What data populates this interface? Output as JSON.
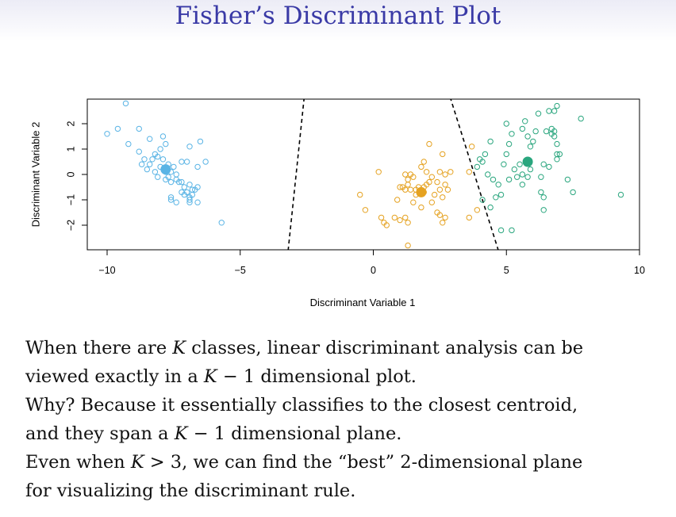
{
  "slide": {
    "title": "Fisher’s Discriminant Plot",
    "title_color": "#3a3aa6"
  },
  "text": {
    "line1": {
      "a": "When there are ",
      "k1": "K",
      "b": " classes, linear discriminant analysis can be"
    },
    "line2": {
      "a": "viewed exactly in a ",
      "k1": "K",
      "b": " − 1 dimensional plot."
    },
    "line3": {
      "a": "Why? Because it essentially classifies to the closest centroid,"
    },
    "line4": {
      "a": "and they span a ",
      "k1": "K",
      "b": " − 1 dimensional plane."
    },
    "line5": {
      "a": "Even when ",
      "k1": "K",
      "b": " > 3, we can find the “best” 2-dimensional plane"
    },
    "line6": {
      "a": "for visualizing the discriminant rule."
    }
  },
  "chart_data": {
    "type": "scatter",
    "xlabel": "Discriminant Variable 1",
    "ylabel": "Discriminant Variable 2",
    "xlim": [
      -10.5,
      10.5
    ],
    "ylim": [
      -3.0,
      3.0
    ],
    "xticks": [
      -10,
      -5,
      0,
      5,
      10
    ],
    "yticks": [
      -2,
      -1,
      0,
      1,
      2
    ],
    "grid": false,
    "series": [
      {
        "color": "#5ab4e5",
        "centroid": [
          -7.8,
          0.2
        ],
        "points": [
          [
            -9.3,
            2.8
          ],
          [
            -10.0,
            1.6
          ],
          [
            -9.6,
            1.8
          ],
          [
            -8.8,
            1.8
          ],
          [
            -9.2,
            1.2
          ],
          [
            -8.4,
            1.4
          ],
          [
            -7.9,
            1.5
          ],
          [
            -7.8,
            1.2
          ],
          [
            -8.0,
            1.0
          ],
          [
            -8.2,
            0.8
          ],
          [
            -8.8,
            0.9
          ],
          [
            -8.6,
            0.6
          ],
          [
            -8.3,
            0.6
          ],
          [
            -8.1,
            0.7
          ],
          [
            -7.9,
            0.6
          ],
          [
            -7.7,
            0.4
          ],
          [
            -7.5,
            0.3
          ],
          [
            -8.4,
            0.4
          ],
          [
            -8.7,
            0.4
          ],
          [
            -8.5,
            0.2
          ],
          [
            -8.0,
            0.3
          ],
          [
            -8.2,
            0.1
          ],
          [
            -7.8,
            0.1
          ],
          [
            -7.6,
            0.1
          ],
          [
            -7.4,
            0.0
          ],
          [
            -7.7,
            -0.1
          ],
          [
            -7.4,
            -0.2
          ],
          [
            -7.2,
            -0.3
          ],
          [
            -7.1,
            -0.5
          ],
          [
            -7.8,
            -0.2
          ],
          [
            -8.1,
            -0.1
          ],
          [
            -7.6,
            -0.3
          ],
          [
            -7.0,
            -0.7
          ],
          [
            -6.8,
            -0.6
          ],
          [
            -7.2,
            -0.7
          ],
          [
            -6.8,
            -0.8
          ],
          [
            -7.6,
            -0.9
          ],
          [
            -7.4,
            -1.1
          ],
          [
            -7.1,
            -0.8
          ],
          [
            -6.9,
            -0.9
          ],
          [
            -6.7,
            -0.6
          ],
          [
            -6.9,
            -1.0
          ],
          [
            -6.6,
            -1.1
          ],
          [
            -6.9,
            -0.4
          ],
          [
            -6.6,
            -0.5
          ],
          [
            -6.9,
            -1.1
          ],
          [
            -7.2,
            0.5
          ],
          [
            -6.9,
            1.1
          ],
          [
            -6.5,
            1.3
          ],
          [
            -6.3,
            0.5
          ],
          [
            -7.0,
            0.5
          ],
          [
            -6.6,
            0.3
          ],
          [
            -5.7,
            -1.9
          ],
          [
            -7.6,
            -1.0
          ],
          [
            -7.3,
            -0.3
          ]
        ]
      },
      {
        "color": "#e5a221",
        "centroid": [
          1.8,
          -0.7
        ],
        "points": [
          [
            -0.5,
            -0.8
          ],
          [
            -0.3,
            -1.4
          ],
          [
            0.2,
            0.1
          ],
          [
            0.3,
            -1.7
          ],
          [
            0.5,
            -2.0
          ],
          [
            0.4,
            -1.9
          ],
          [
            0.8,
            -1.7
          ],
          [
            1.0,
            -1.8
          ],
          [
            1.2,
            -1.7
          ],
          [
            1.3,
            -1.9
          ],
          [
            1.3,
            -2.8
          ],
          [
            0.9,
            -1.0
          ],
          [
            1.0,
            -0.5
          ],
          [
            1.2,
            -0.6
          ],
          [
            1.3,
            -0.4
          ],
          [
            1.1,
            -0.5
          ],
          [
            1.4,
            -0.6
          ],
          [
            1.2,
            0.0
          ],
          [
            1.3,
            -0.2
          ],
          [
            1.4,
            0.0
          ],
          [
            1.5,
            -0.1
          ],
          [
            1.6,
            -0.8
          ],
          [
            1.7,
            -0.5
          ],
          [
            1.9,
            -0.7
          ],
          [
            2.0,
            -0.4
          ],
          [
            2.1,
            -0.3
          ],
          [
            1.8,
            0.3
          ],
          [
            1.9,
            0.5
          ],
          [
            2.0,
            0.1
          ],
          [
            2.2,
            -0.1
          ],
          [
            2.4,
            -0.3
          ],
          [
            2.5,
            -0.6
          ],
          [
            2.6,
            -0.9
          ],
          [
            2.7,
            -0.4
          ],
          [
            2.8,
            -0.6
          ],
          [
            2.5,
            0.1
          ],
          [
            2.7,
            0.0
          ],
          [
            2.9,
            0.1
          ],
          [
            2.1,
            1.2
          ],
          [
            2.6,
            0.8
          ],
          [
            2.5,
            -1.6
          ],
          [
            2.6,
            -1.9
          ],
          [
            2.4,
            -1.5
          ],
          [
            1.8,
            -1.3
          ],
          [
            1.5,
            -1.1
          ],
          [
            2.2,
            -1.1
          ],
          [
            3.6,
            -1.7
          ],
          [
            3.9,
            -1.4
          ],
          [
            3.7,
            1.1
          ],
          [
            3.6,
            0.1
          ],
          [
            1.6,
            -0.6
          ],
          [
            2.3,
            -0.8
          ],
          [
            2.7,
            -1.7
          ],
          [
            1.9,
            -0.5
          ]
        ]
      },
      {
        "color": "#2aa67e",
        "centroid": [
          5.8,
          0.5
        ],
        "points": [
          [
            3.9,
            0.3
          ],
          [
            4.0,
            0.6
          ],
          [
            4.1,
            0.5
          ],
          [
            4.2,
            0.8
          ],
          [
            4.4,
            1.3
          ],
          [
            4.3,
            0.0
          ],
          [
            4.5,
            -0.2
          ],
          [
            4.6,
            -0.9
          ],
          [
            4.8,
            -0.8
          ],
          [
            4.7,
            -0.4
          ],
          [
            4.9,
            0.4
          ],
          [
            5.0,
            0.8
          ],
          [
            5.1,
            1.2
          ],
          [
            5.2,
            1.6
          ],
          [
            5.0,
            2.0
          ],
          [
            5.3,
            0.2
          ],
          [
            5.4,
            -0.1
          ],
          [
            5.5,
            0.4
          ],
          [
            5.6,
            0.0
          ],
          [
            5.6,
            -0.4
          ],
          [
            5.8,
            -0.1
          ],
          [
            5.9,
            0.2
          ],
          [
            5.9,
            1.1
          ],
          [
            5.8,
            1.5
          ],
          [
            5.6,
            1.8
          ],
          [
            5.7,
            2.1
          ],
          [
            6.0,
            1.3
          ],
          [
            6.1,
            1.7
          ],
          [
            6.2,
            2.4
          ],
          [
            6.3,
            -0.1
          ],
          [
            6.4,
            0.4
          ],
          [
            6.5,
            1.7
          ],
          [
            6.6,
            0.3
          ],
          [
            6.7,
            1.8
          ],
          [
            6.8,
            1.5
          ],
          [
            6.9,
            0.8
          ],
          [
            6.8,
            2.5
          ],
          [
            6.9,
            2.7
          ],
          [
            6.6,
            2.5
          ],
          [
            6.8,
            1.7
          ],
          [
            6.7,
            1.6
          ],
          [
            6.9,
            1.2
          ],
          [
            7.0,
            0.8
          ],
          [
            6.9,
            0.6
          ],
          [
            7.3,
            -0.2
          ],
          [
            7.8,
            2.2
          ],
          [
            7.5,
            -0.7
          ],
          [
            9.3,
            -0.8
          ],
          [
            6.4,
            -0.9
          ],
          [
            6.4,
            -1.4
          ],
          [
            6.3,
            -0.7
          ],
          [
            4.8,
            -2.2
          ],
          [
            5.2,
            -2.2
          ],
          [
            4.4,
            -1.3
          ],
          [
            4.1,
            -1.0
          ],
          [
            5.1,
            -0.2
          ]
        ]
      }
    ],
    "decision_boundaries": [
      {
        "from": [
          -3.2,
          -3.0
        ],
        "to": [
          -2.6,
          3.0
        ]
      },
      {
        "from": [
          4.7,
          -3.0
        ],
        "to": [
          2.9,
          3.0
        ]
      }
    ]
  }
}
